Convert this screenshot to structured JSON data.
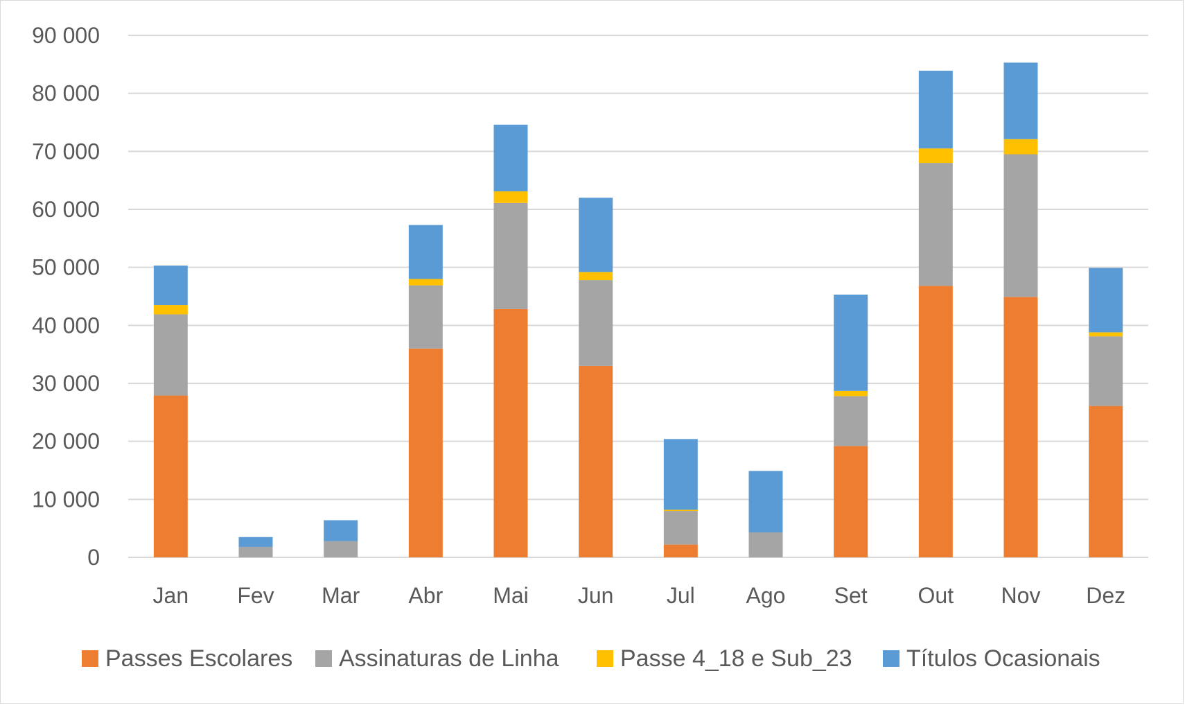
{
  "chart_data": {
    "type": "bar",
    "stacked": true,
    "title": "",
    "xlabel": "",
    "ylabel": "",
    "ylim": [
      0,
      90000
    ],
    "y_ticks": [
      0,
      10000,
      20000,
      30000,
      40000,
      50000,
      60000,
      70000,
      80000,
      90000
    ],
    "y_tick_labels": [
      "0",
      "10 000",
      "20 000",
      "30 000",
      "40 000",
      "50 000",
      "60 000",
      "70 000",
      "80 000",
      "90 000"
    ],
    "grid": true,
    "legend_position": "bottom",
    "categories": [
      "Jan",
      "Fev",
      "Mar",
      "Abr",
      "Mai",
      "Jun",
      "Jul",
      "Ago",
      "Set",
      "Out",
      "Nov",
      "Dez"
    ],
    "series": [
      {
        "name": "Passes Escolares",
        "color": "#ED7D31",
        "values": [
          27900,
          0,
          0,
          36000,
          42800,
          33000,
          2200,
          0,
          19200,
          46800,
          44900,
          26100
        ]
      },
      {
        "name": "Assinaturas de Linha",
        "color": "#A5A5A5",
        "values": [
          14000,
          1800,
          2800,
          10900,
          18300,
          14800,
          5800,
          4300,
          8600,
          21200,
          24600,
          12000
        ]
      },
      {
        "name": "Passe 4_18 e Sub_23",
        "color": "#FFC000",
        "values": [
          1600,
          0,
          0,
          1100,
          2000,
          1400,
          200,
          0,
          900,
          2500,
          2600,
          700
        ]
      },
      {
        "name": "Títulos Ocasionais",
        "color": "#5B9BD5",
        "values": [
          6800,
          1700,
          3600,
          9300,
          11500,
          12800,
          12200,
          10600,
          16600,
          13400,
          13200,
          11100
        ]
      }
    ]
  }
}
